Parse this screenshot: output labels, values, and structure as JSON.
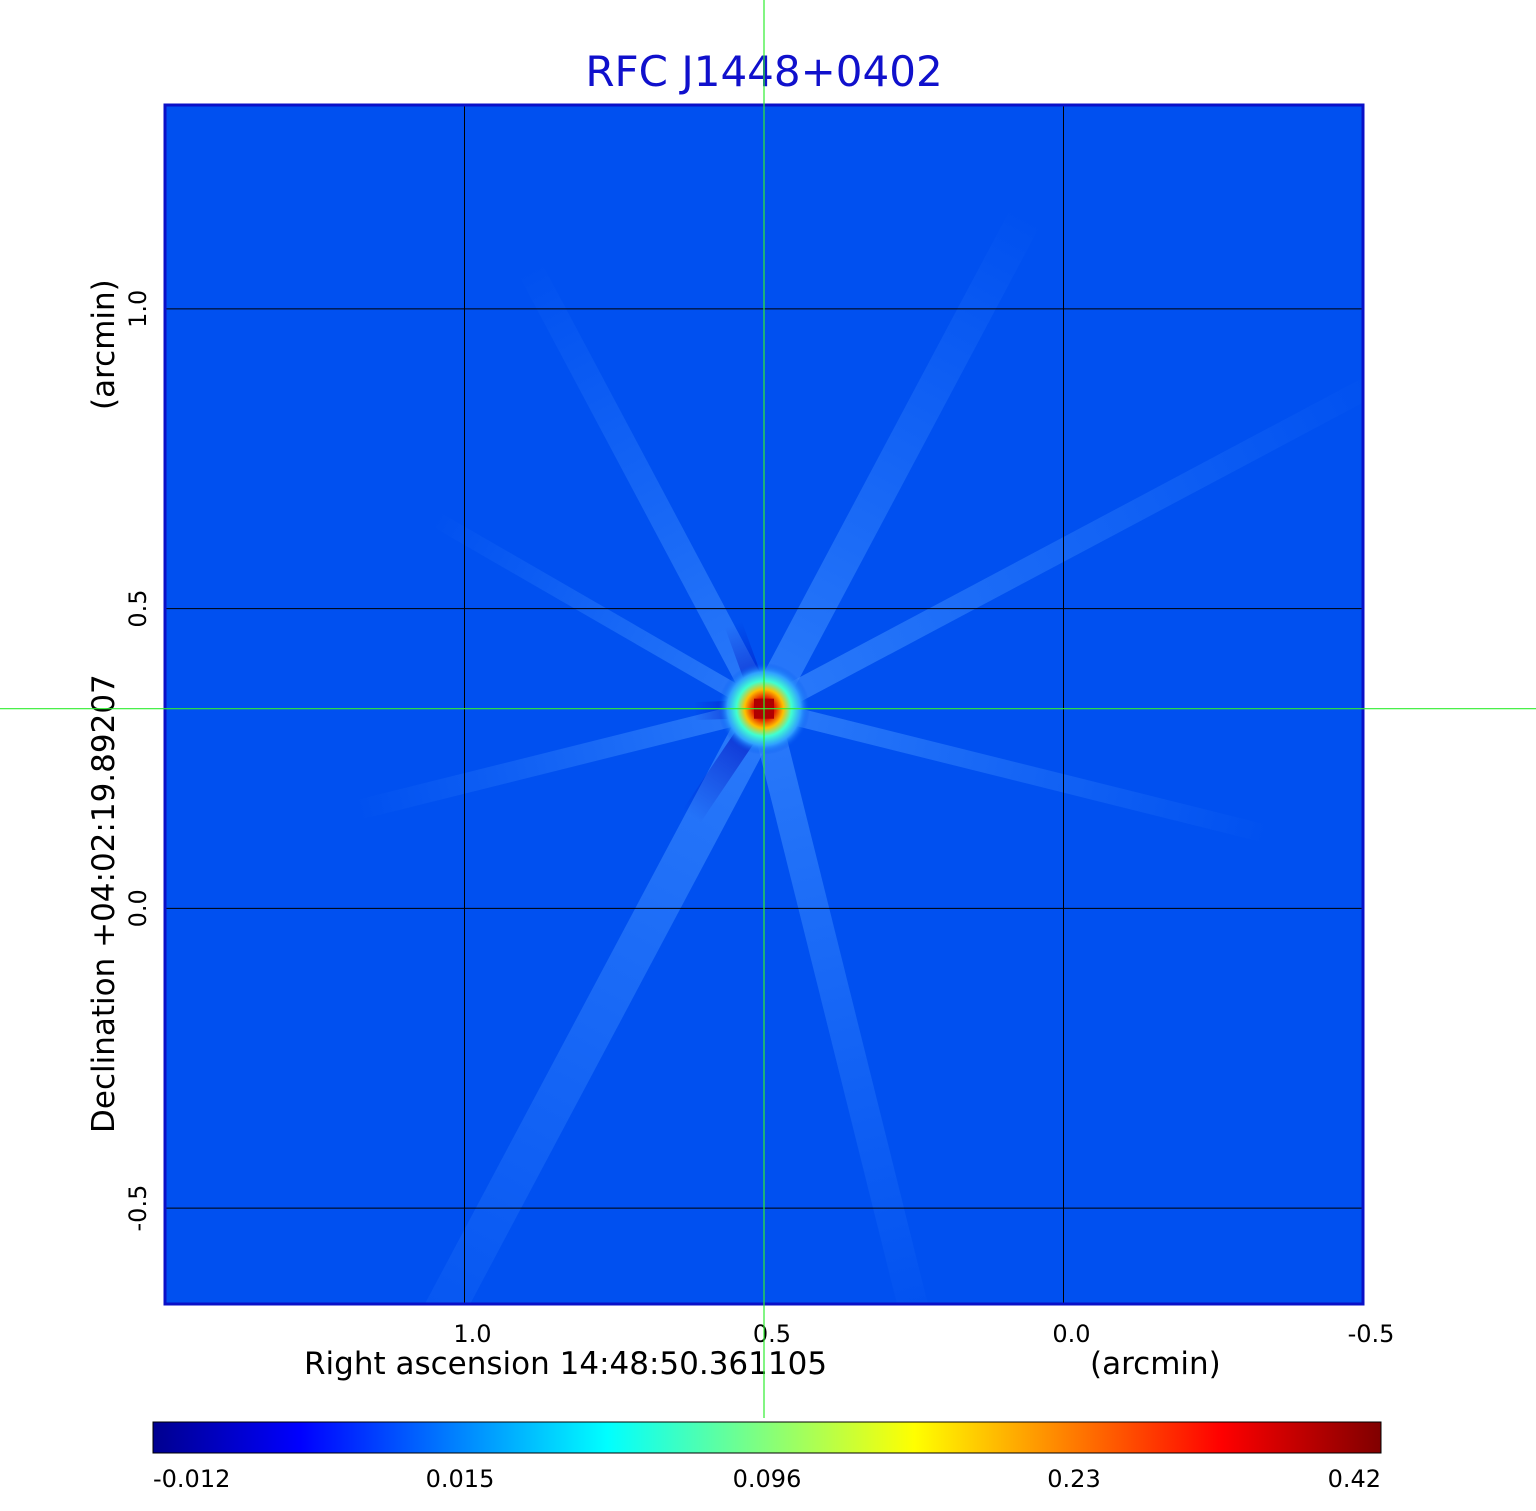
{
  "chart_data": {
    "type": "heatmap",
    "title": "RFC J1448+0402",
    "xlabel": "Right ascension  14:48:50.361105",
    "xlabel_unit": "(arcmin)",
    "ylabel": "Declination  +04:02:19.89207",
    "ylabel_unit": "(arcmin)",
    "x_ticks": [
      "1.0",
      "0.5",
      "0.0",
      "-0.5"
    ],
    "y_ticks": [
      "1.0",
      "0.5",
      "0.0",
      "-0.5"
    ],
    "x_tick_values": [
      1.0,
      0.5,
      0.0,
      -0.5
    ],
    "y_tick_values": [
      1.0,
      0.5,
      0.0,
      -0.5
    ],
    "xlim": [
      1.5,
      -0.5
    ],
    "ylim": [
      -0.66,
      1.34
    ],
    "grid": true,
    "crosshair": {
      "x": 0.5,
      "y": 0.333
    },
    "peak": {
      "x": 0.5,
      "y": 0.333,
      "value": 0.42
    },
    "background_value": 0.0,
    "colorbar": {
      "ticks": [
        "-0.012",
        "0.015",
        "0.096",
        "0.23",
        "0.42"
      ],
      "tick_values": [
        -0.012,
        0.015,
        0.096,
        0.23,
        0.42
      ],
      "colormap": "jet"
    },
    "colors": {
      "title": "#1010cc",
      "background": "#0050f0",
      "frame": "#0a10c8",
      "grid": "#000000",
      "crosshair": "#30ee30"
    }
  }
}
